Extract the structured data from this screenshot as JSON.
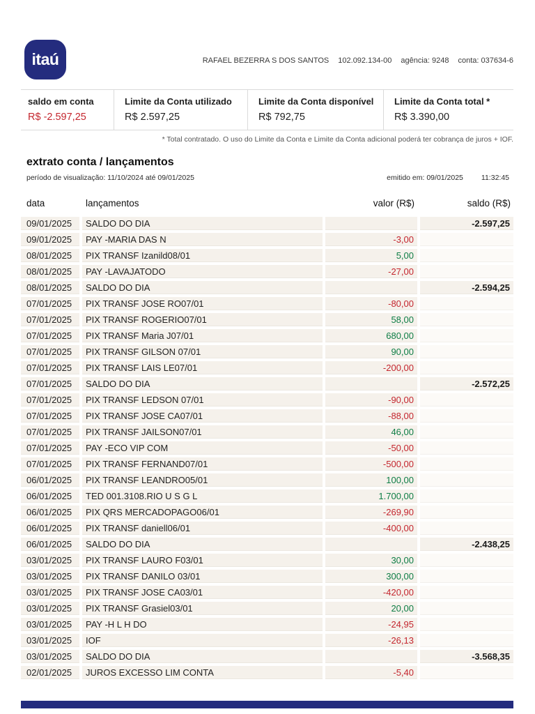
{
  "colors": {
    "brand_navy": "#242c7e",
    "debit_red": "#c4262e",
    "credit_green": "#0e7d45",
    "row_bg": "#f5f1eb",
    "negative_balance_red": "#c4262e"
  },
  "header": {
    "logo_text": "itaú",
    "account_holder": "RAFAEL BEZERRA S DOS SANTOS",
    "document_number": "102.092.134-00",
    "agencia": "agência: 9248",
    "conta": "conta: 037634-6"
  },
  "summary": {
    "items": [
      {
        "label": "saldo em conta",
        "value": "R$ -2.597,25"
      },
      {
        "label": "Limite da Conta utilizado",
        "value": "R$ 2.597,25"
      },
      {
        "label": "Limite da Conta disponível",
        "value": "R$ 792,75"
      },
      {
        "label": "Limite da Conta total *",
        "value": "R$ 3.390,00"
      }
    ],
    "footnote": "* Total contratado. O uso do Limite da Conta e Limite da Conta adicional poderá ter cobrança de juros + IOF."
  },
  "statement": {
    "title": "extrato conta / lançamentos",
    "period": "período de visualização: 11/10/2024 até 09/01/2025",
    "emitted": "emitido em: 09/01/2025",
    "emitted_time": "11:32:45",
    "columns": [
      "data",
      "lançamentos",
      "valor (R$)",
      "saldo (R$)"
    ],
    "rows": [
      {
        "date": "09/01/2025",
        "description": "SALDO DO DIA",
        "valor": "",
        "saldo": "-2.597,25"
      },
      {
        "date": "09/01/2025",
        "description": "PAY -MARIA DAS N",
        "valor": "-3,00",
        "saldo": ""
      },
      {
        "date": "08/01/2025",
        "description": "PIX TRANSF Izanild08/01",
        "valor": "5,00",
        "saldo": ""
      },
      {
        "date": "08/01/2025",
        "description": "PAY -LAVAJATODO",
        "valor": "-27,00",
        "saldo": ""
      },
      {
        "date": "08/01/2025",
        "description": "SALDO DO DIA",
        "valor": "",
        "saldo": "-2.594,25"
      },
      {
        "date": "07/01/2025",
        "description": "PIX TRANSF JOSE RO07/01",
        "valor": "-80,00",
        "saldo": ""
      },
      {
        "date": "07/01/2025",
        "description": "PIX TRANSF ROGERIO07/01",
        "valor": "58,00",
        "saldo": ""
      },
      {
        "date": "07/01/2025",
        "description": "PIX TRANSF Maria J07/01",
        "valor": "680,00",
        "saldo": ""
      },
      {
        "date": "07/01/2025",
        "description": "PIX TRANSF GILSON 07/01",
        "valor": "90,00",
        "saldo": ""
      },
      {
        "date": "07/01/2025",
        "description": "PIX TRANSF LAIS LE07/01",
        "valor": "-200,00",
        "saldo": ""
      },
      {
        "date": "07/01/2025",
        "description": "SALDO DO DIA",
        "valor": "",
        "saldo": "-2.572,25"
      },
      {
        "date": "07/01/2025",
        "description": "PIX TRANSF LEDSON 07/01",
        "valor": "-90,00",
        "saldo": ""
      },
      {
        "date": "07/01/2025",
        "description": "PIX TRANSF JOSE CA07/01",
        "valor": "-88,00",
        "saldo": ""
      },
      {
        "date": "07/01/2025",
        "description": "PIX TRANSF JAILSON07/01",
        "valor": "46,00",
        "saldo": ""
      },
      {
        "date": "07/01/2025",
        "description": "PAY -ECO VIP COM",
        "valor": "-50,00",
        "saldo": ""
      },
      {
        "date": "07/01/2025",
        "description": "PIX TRANSF FERNAND07/01",
        "valor": "-500,00",
        "saldo": ""
      },
      {
        "date": "06/01/2025",
        "description": "PIX TRANSF LEANDRO05/01",
        "valor": "100,00",
        "saldo": ""
      },
      {
        "date": "06/01/2025",
        "description": "TED 001.3108.RIO U S G L",
        "valor": "1.700,00",
        "saldo": ""
      },
      {
        "date": "06/01/2025",
        "description": "PIX QRS MERCADOPAGO06/01",
        "valor": "-269,90",
        "saldo": ""
      },
      {
        "date": "06/01/2025",
        "description": "PIX TRANSF daniell06/01",
        "valor": "-400,00",
        "saldo": ""
      },
      {
        "date": "06/01/2025",
        "description": "SALDO DO DIA",
        "valor": "",
        "saldo": "-2.438,25"
      },
      {
        "date": "03/01/2025",
        "description": "PIX TRANSF LAURO F03/01",
        "valor": "30,00",
        "saldo": ""
      },
      {
        "date": "03/01/2025",
        "description": "PIX TRANSF DANILO 03/01",
        "valor": "300,00",
        "saldo": ""
      },
      {
        "date": "03/01/2025",
        "description": "PIX TRANSF JOSE CA03/01",
        "valor": "-420,00",
        "saldo": ""
      },
      {
        "date": "03/01/2025",
        "description": "PIX TRANSF Grasiel03/01",
        "valor": "20,00",
        "saldo": ""
      },
      {
        "date": "03/01/2025",
        "description": "PAY -H L H DO",
        "valor": "-24,95",
        "saldo": ""
      },
      {
        "date": "03/01/2025",
        "description": "IOF",
        "valor": "-26,13",
        "saldo": ""
      },
      {
        "date": "03/01/2025",
        "description": "SALDO DO DIA",
        "valor": "",
        "saldo": "-3.568,35"
      },
      {
        "date": "02/01/2025",
        "description": "JUROS EXCESSO LIM CONTA",
        "valor": "-5,40",
        "saldo": ""
      }
    ]
  }
}
